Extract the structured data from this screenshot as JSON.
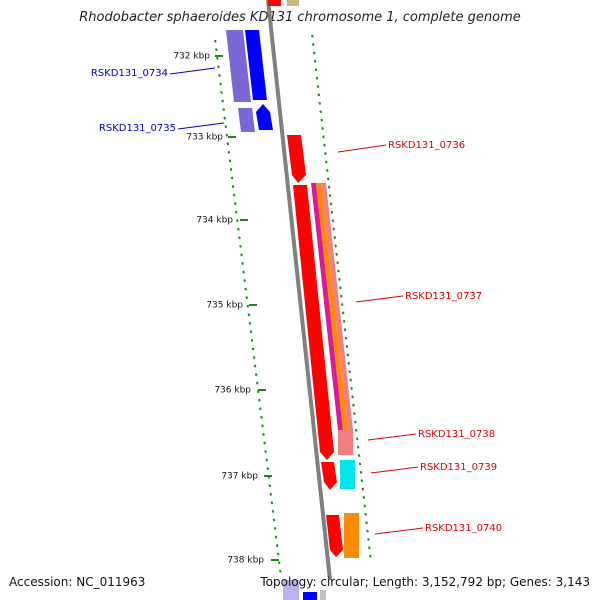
{
  "title": "Rhodobacter sphaeroides KD131 chromosome 1, complete genome",
  "footer": {
    "accession": "Accession: NC_011963",
    "summary": "Topology: circular; Length: 3,152,792 bp; Genes: 3,143"
  },
  "kbp_ticks": [
    {
      "label": "732 kbp"
    },
    {
      "label": "733 kbp"
    },
    {
      "label": "734 kbp"
    },
    {
      "label": "735 kbp"
    },
    {
      "label": "736 kbp"
    },
    {
      "label": "737 kbp"
    },
    {
      "label": "738 kbp"
    }
  ],
  "genes": [
    {
      "label": "RSKD131_0734",
      "color": "#0000cc"
    },
    {
      "label": "RSKD131_0735",
      "color": "#0000cc"
    },
    {
      "label": "RSKD131_0736",
      "color": "#dd0000"
    },
    {
      "label": "RSKD131_0737",
      "color": "#dd0000"
    },
    {
      "label": "RSKD131_0738",
      "color": "#dd0000"
    },
    {
      "label": "RSKD131_0739",
      "color": "#dd0000"
    },
    {
      "label": "RSKD131_0740",
      "color": "#dd0000"
    }
  ],
  "colors": {
    "backbone": "#808080",
    "tick_marks": "#1a8a1a",
    "forward_red": "#ff0000",
    "purple": "#7b68d8",
    "blue": "#0000ff",
    "magenta": "#d81b9b",
    "salmon": "#f08080",
    "orange": "#ff8c00",
    "cyan": "#00e5ee",
    "olive": "#c8b878"
  }
}
